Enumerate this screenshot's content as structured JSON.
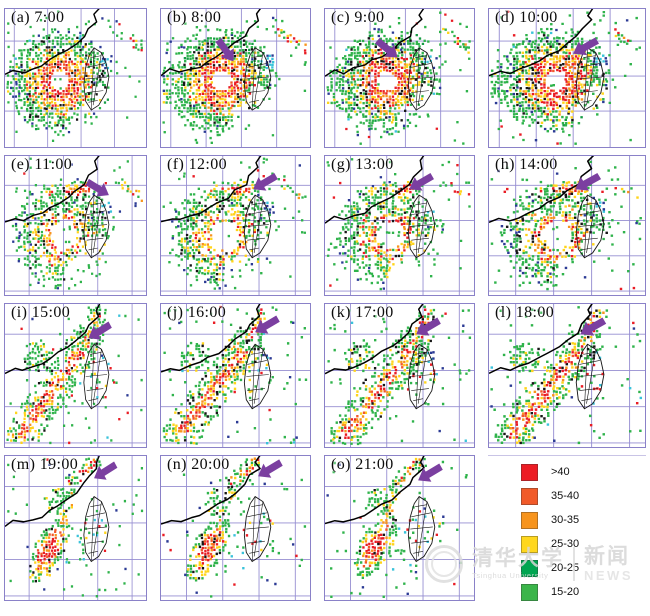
{
  "figure": {
    "description_visible_text_only": true,
    "panels": [
      {
        "id": "a",
        "index": "(a)",
        "time": "7:00",
        "stage": "spiral-strong",
        "seed": 101,
        "arrow": null
      },
      {
        "id": "b",
        "index": "(b)",
        "time": "8:00",
        "stage": "spiral-strong",
        "seed": 202,
        "arrow": {
          "tip": [
            74,
            54
          ],
          "dir": "down-right",
          "angle": 55
        }
      },
      {
        "id": "c",
        "index": "(c)",
        "time": "9:00",
        "stage": "spiral-strong",
        "seed": 303,
        "arrow": {
          "tip": [
            74,
            50
          ],
          "dir": "down-right",
          "angle": 40
        }
      },
      {
        "id": "d",
        "index": "(d)",
        "time": "10:00",
        "stage": "spiral-strong",
        "seed": 404,
        "arrow": {
          "tip": [
            82,
            46
          ],
          "dir": "down-left",
          "angle": 30
        }
      },
      {
        "id": "e",
        "index": "(e)",
        "time": "11:00",
        "stage": "spiral-weak",
        "seed": 505,
        "arrow": {
          "tip": [
            112,
            40
          ],
          "dir": "down-right",
          "angle": 30
        }
      },
      {
        "id": "f",
        "index": "(f)",
        "time": "12:00",
        "stage": "spiral-weak",
        "seed": 606,
        "arrow": {
          "tip": [
            94,
            34
          ],
          "dir": "down-left",
          "angle": 30
        }
      },
      {
        "id": "g",
        "index": "(g)",
        "time": "13:00",
        "stage": "spiral-weak",
        "seed": 707,
        "arrow": {
          "tip": [
            86,
            34
          ],
          "dir": "down-left",
          "angle": 30
        }
      },
      {
        "id": "h",
        "index": "(h)",
        "time": "14:00",
        "stage": "spiral-weak",
        "seed": 808,
        "arrow": {
          "tip": [
            84,
            34
          ],
          "dir": "down-left",
          "angle": 30
        }
      },
      {
        "id": "i",
        "index": "(i)",
        "time": "15:00",
        "stage": "band",
        "seed": 909,
        "arrow": {
          "tip": [
            90,
            34
          ],
          "dir": "down-left",
          "angle": 30
        }
      },
      {
        "id": "j",
        "index": "(j)",
        "time": "16:00",
        "stage": "band",
        "seed": 1010,
        "arrow": {
          "tip": [
            96,
            28
          ],
          "dir": "down-left",
          "angle": 30
        }
      },
      {
        "id": "k",
        "index": "(k)",
        "time": "17:00",
        "stage": "band",
        "seed": 1111,
        "arrow": {
          "tip": [
            93,
            30
          ],
          "dir": "down-left",
          "angle": 30
        }
      },
      {
        "id": "l",
        "index": "(l)",
        "time": "18:00",
        "stage": "band",
        "seed": 1212,
        "arrow": {
          "tip": [
            89,
            30
          ],
          "dir": "down-left",
          "angle": 30
        }
      },
      {
        "id": "m",
        "index": "(m)",
        "time": "19:00",
        "stage": "sw-band",
        "seed": 1313,
        "arrow": {
          "tip": [
            96,
            22
          ],
          "dir": "down-left",
          "angle": 30
        }
      },
      {
        "id": "n",
        "index": "(n)",
        "time": "20:00",
        "stage": "sw-band",
        "seed": 1414,
        "arrow": {
          "tip": [
            99,
            20
          ],
          "dir": "down-left",
          "angle": 30
        }
      },
      {
        "id": "o",
        "index": "(o)",
        "time": "21:00",
        "stage": "sw-band",
        "seed": 1515,
        "arrow": {
          "tip": [
            95,
            24
          ],
          "dir": "down-left",
          "angle": 30
        }
      }
    ]
  },
  "legend": {
    "items": [
      {
        "range": ">40",
        "color": "#ec1c24"
      },
      {
        "range": "35-40",
        "color": "#f15a29"
      },
      {
        "range": "30-35",
        "color": "#f7941d"
      },
      {
        "range": "25-30",
        "color": "#ffd71e"
      },
      {
        "range": "20-25",
        "color": "#00a551"
      },
      {
        "range": "15-20",
        "color": "#3bb54a"
      }
    ]
  },
  "watermark": {
    "org_cn": "清华大学",
    "org_en": "Tsinghua University",
    "news_cn": "新闻",
    "news_en": "NEWS"
  },
  "colors": {
    "panel_border": "#8a81c8",
    "grid_line": "#958dd1",
    "arrow": "#7b3fa0",
    "coastline": "#000000",
    "echo_green": "#2fb34b",
    "echo_green_dark": "#169c44",
    "echo_yellow": "#ffd41a",
    "echo_orange": "#f7941d",
    "echo_red_orange": "#f1582a",
    "echo_red": "#e91c24",
    "echo_navy": "#2b3a94",
    "echo_cyan": "#39c2da"
  },
  "chart_data": {
    "type": "heatmap",
    "subtype": "radar-reflectivity-mosaic",
    "panel_times": [
      "7:00",
      "8:00",
      "9:00",
      "10:00",
      "11:00",
      "12:00",
      "13:00",
      "14:00",
      "15:00",
      "16:00",
      "17:00",
      "18:00",
      "19:00",
      "20:00",
      "21:00"
    ],
    "panel_indices": [
      "(a)",
      "(b)",
      "(c)",
      "(d)",
      "(e)",
      "(f)",
      "(g)",
      "(h)",
      "(i)",
      "(j)",
      "(k)",
      "(l)",
      "(m)",
      "(n)",
      "(o)"
    ],
    "legend_bins": [
      ">40",
      "35-40",
      "30-35",
      "25-30",
      "20-25",
      "15-20"
    ],
    "legend_colors": [
      "#ec1c24",
      "#f15a29",
      "#f7941d",
      "#ffd71e",
      "#00a551",
      "#3bb54a"
    ],
    "legend_position": "bottom-right",
    "annotation": "purple arrows on panels (b)-(o) marking a coastal feature"
  }
}
